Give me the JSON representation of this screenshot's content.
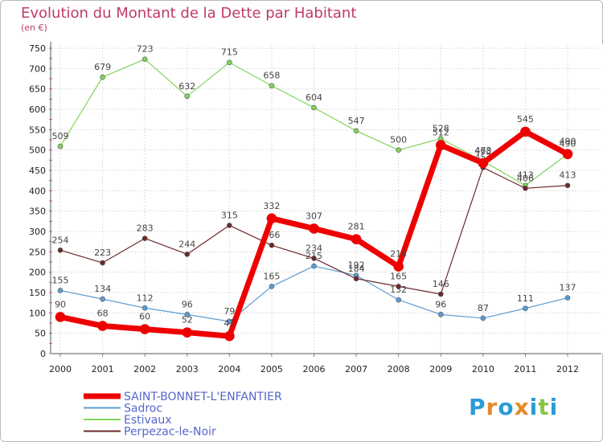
{
  "chart_data": {
    "type": "line",
    "title": "Evolution du Montant de la Dette par Habitant",
    "subtitle": "(en €)",
    "x": [
      "2000",
      "2001",
      "2002",
      "2003",
      "2004",
      "2005",
      "2006",
      "2007",
      "2008",
      "2009",
      "2010",
      "2011",
      "2012"
    ],
    "ylim": [
      0,
      750
    ],
    "yticks": [
      0,
      50,
      100,
      150,
      200,
      250,
      300,
      350,
      400,
      450,
      500,
      550,
      600,
      650,
      700,
      750
    ],
    "grid": true,
    "legend_position": "bottom-left",
    "series": [
      {
        "name": "SAINT-BONNET-L'ENFANTIER",
        "color": "#ee0000",
        "emphasis": true,
        "values": [
          90,
          68,
          60,
          52,
          43,
          332,
          307,
          281,
          214,
          512,
          468,
          545,
          490
        ]
      },
      {
        "name": "Sadroc",
        "color": "#5b9bd5",
        "values": [
          155,
          134,
          112,
          96,
          79,
          165,
          215,
          192,
          132,
          96,
          87,
          111,
          137
        ]
      },
      {
        "name": "Estivaux",
        "color": "#82d45a",
        "values": [
          509,
          679,
          723,
          632,
          715,
          658,
          604,
          547,
          500,
          528,
          473,
          413,
          490
        ]
      },
      {
        "name": "Perpezac-le-Noir",
        "color": "#6b2a2a",
        "values": [
          254,
          223,
          283,
          244,
          315,
          266,
          234,
          184,
          165,
          146,
          457,
          406,
          413
        ]
      }
    ]
  },
  "logo": {
    "text": "Proxiti",
    "colors": [
      "#2b9bd8",
      "#e6892b",
      "#2b9bd8",
      "#e6892b",
      "#2b9bd8",
      "#8bc34a",
      "#2b9bd8"
    ]
  }
}
